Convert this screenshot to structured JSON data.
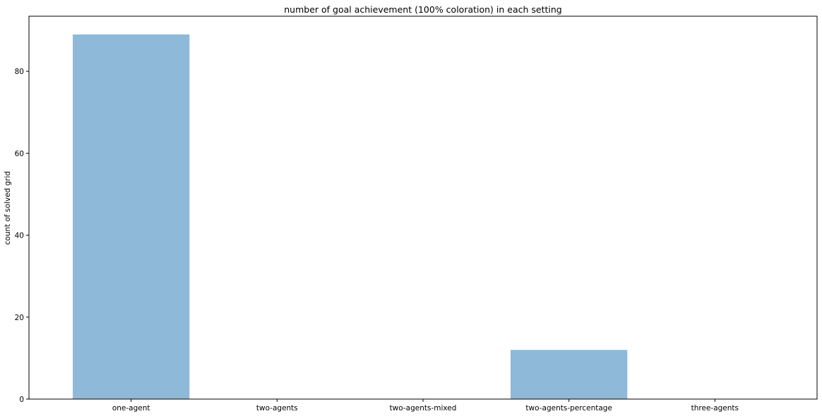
{
  "chart_data": {
    "type": "bar",
    "title": "number of goal achievement (100% coloration) in each setting",
    "xlabel": "",
    "ylabel": "count of solved grid",
    "categories": [
      "one-agent",
      "two-agents",
      "two-agents-mixed",
      "two-agents-percentage",
      "three-agents"
    ],
    "values": [
      89,
      0,
      0,
      12,
      0
    ],
    "ylim": [
      0,
      93.45
    ],
    "yticks": [
      0,
      20,
      40,
      60,
      80
    ],
    "bar_color": "#8fb9d9",
    "grid": false,
    "legend": null
  }
}
